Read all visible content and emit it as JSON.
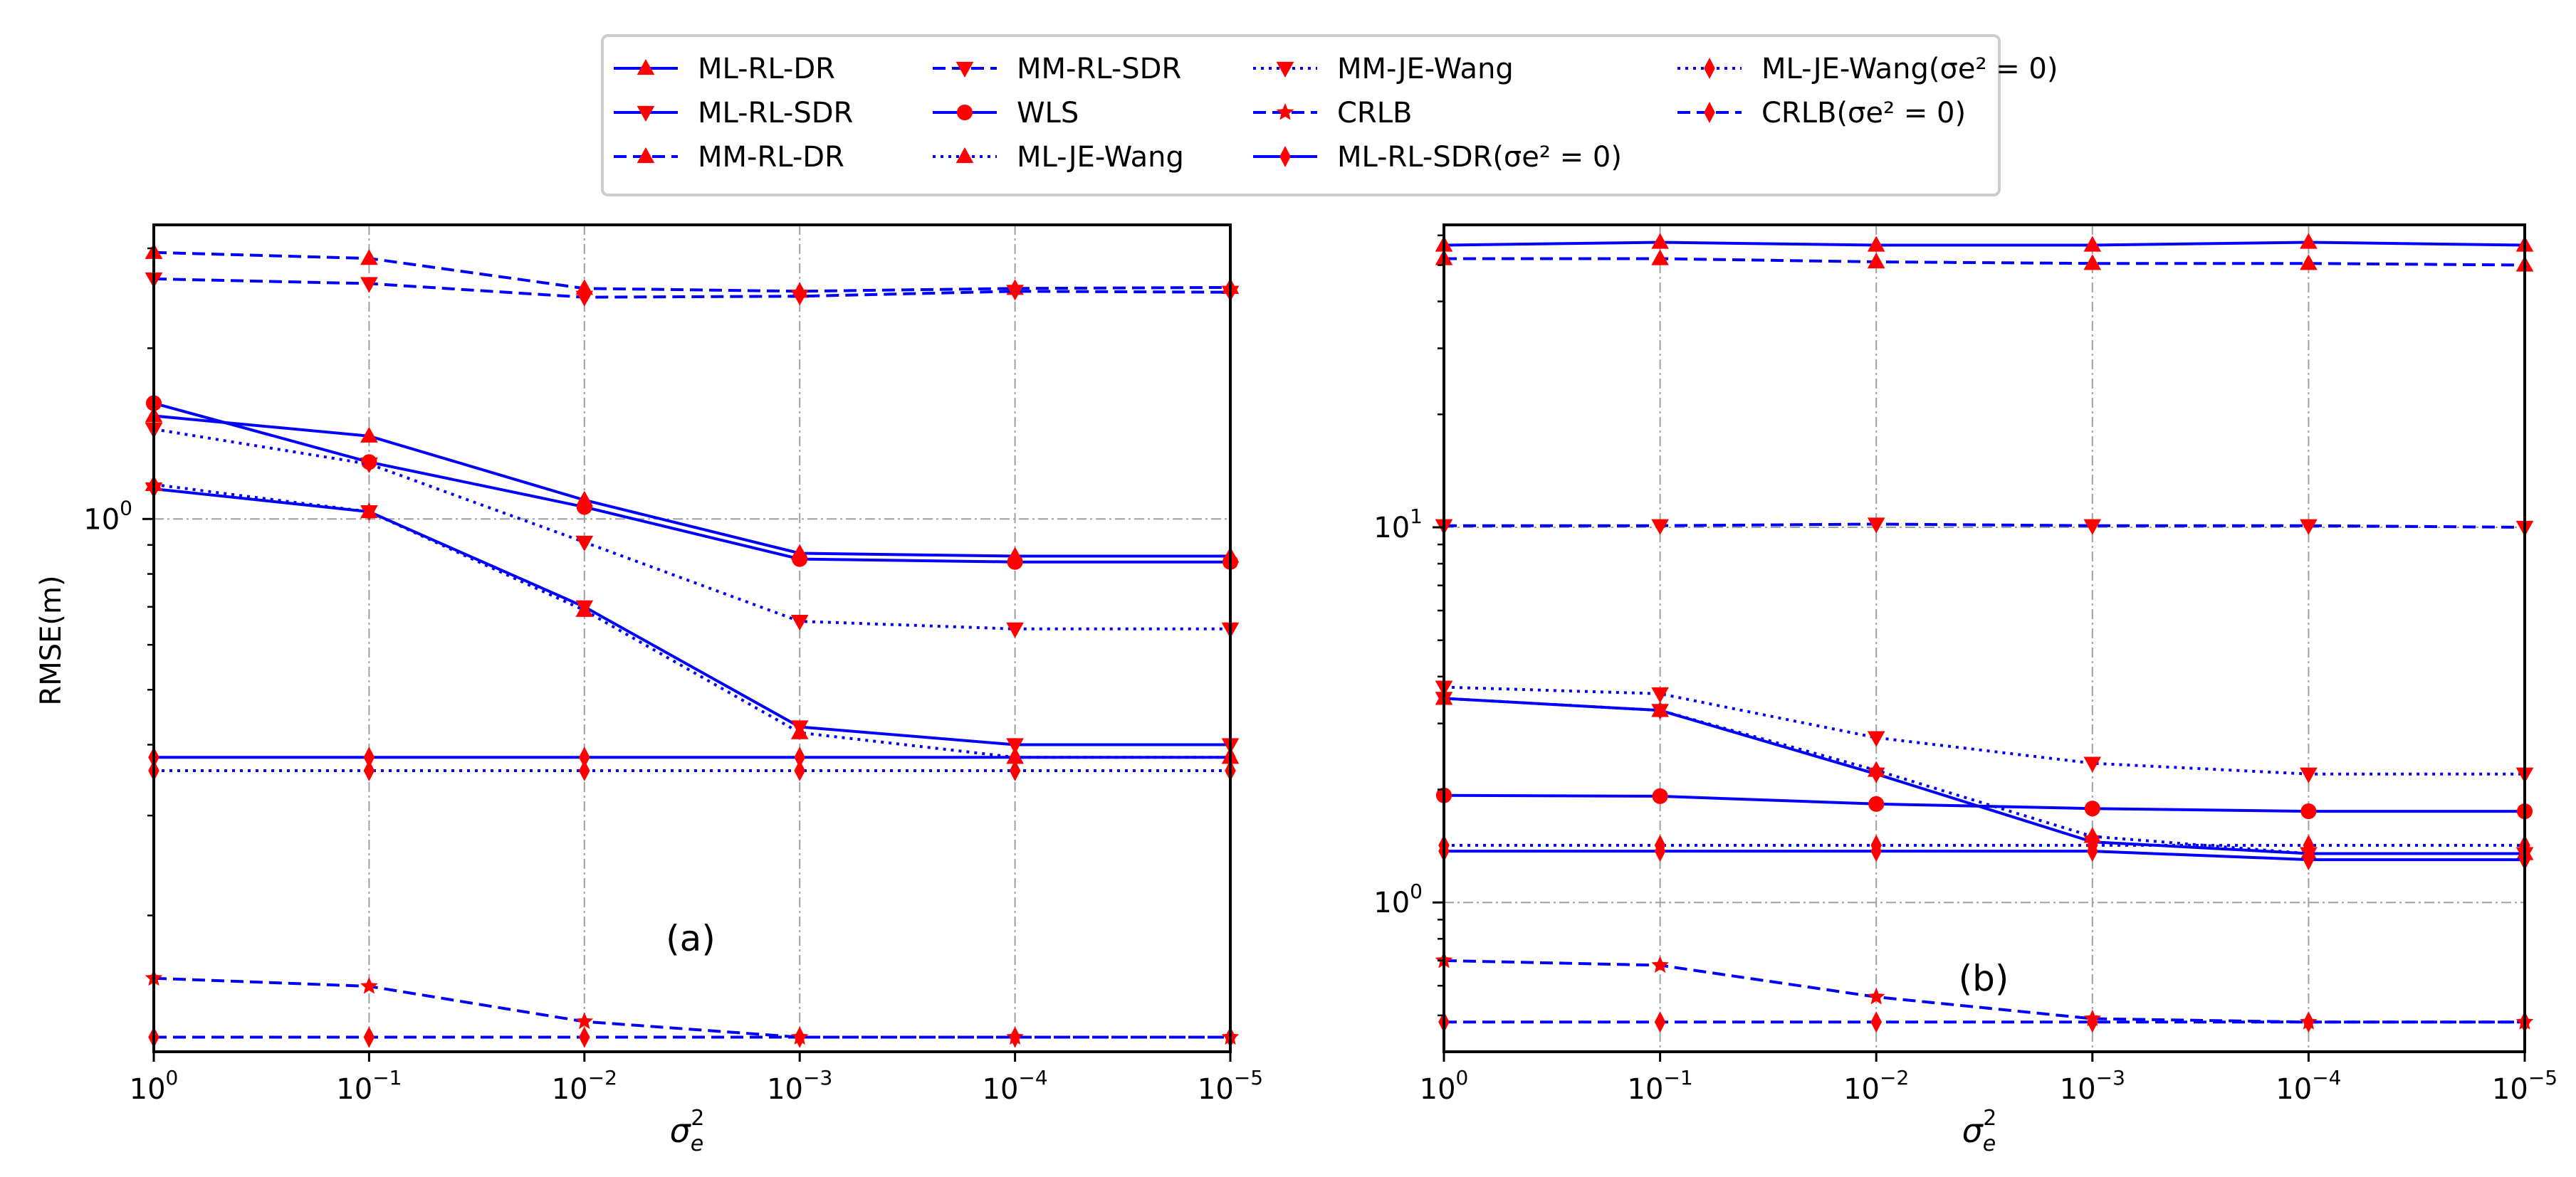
{
  "figure": {
    "y_axis_label": "RMSE(m)",
    "x_axis_label_base": "σ",
    "x_axis_label_sub": "e",
    "x_axis_label_sup": "2"
  },
  "legend": {
    "columns": 4,
    "placement": "top-center, above both panels",
    "entries": [
      {
        "label": "ML-RL-DR",
        "line_style": "solid",
        "marker": "triangle-up"
      },
      {
        "label": "ML-RL-SDR",
        "line_style": "solid",
        "marker": "triangle-down"
      },
      {
        "label": "MM-RL-DR",
        "line_style": "dashed",
        "marker": "triangle-up"
      },
      {
        "label": "MM-RL-SDR",
        "line_style": "dashed",
        "marker": "triangle-down"
      },
      {
        "label": "WLS",
        "line_style": "solid",
        "marker": "circle"
      },
      {
        "label": "ML-JE-Wang",
        "line_style": "dotted",
        "marker": "triangle-up"
      },
      {
        "label": "MM-JE-Wang",
        "line_style": "dotted",
        "marker": "triangle-down"
      },
      {
        "label": "CRLB",
        "line_style": "dashed",
        "marker": "star"
      },
      {
        "label": "ML-RL-SDR(σe² = 0)",
        "line_style": "solid",
        "marker": "diamond"
      },
      {
        "label": "ML-JE-Wang(σe² = 0)",
        "line_style": "dotted",
        "marker": "diamond"
      },
      {
        "label": "CRLB(σe² = 0)",
        "line_style": "dashed",
        "marker": "diamond"
      }
    ]
  },
  "colors": {
    "line": "#0000ff",
    "marker": "#ff0000",
    "grid": "#a0a0a0",
    "axes": "#000000",
    "legend_border": "#cccccc"
  },
  "chart_data": [
    {
      "type": "line",
      "panel_label": "(a)",
      "xscale": "log",
      "yscale": "log",
      "x_direction": "decreasing",
      "x": [
        1,
        0.1,
        0.01,
        0.001,
        0.0001,
        1e-05
      ],
      "x_tick_labels": [
        {
          "base": "10",
          "exp": "0"
        },
        {
          "base": "10",
          "exp": "−1"
        },
        {
          "base": "10",
          "exp": "−2"
        },
        {
          "base": "10",
          "exp": "−3"
        },
        {
          "base": "10",
          "exp": "−4"
        },
        {
          "base": "10",
          "exp": "−5"
        }
      ],
      "y_major_ticks": [
        {
          "value": 1,
          "base": "10",
          "exp": "0"
        }
      ],
      "ylim": [
        0.115,
        3.3
      ],
      "grid": true,
      "series": [
        {
          "name": "ML-RL-DR",
          "values": [
            1.52,
            1.4,
            1.08,
            0.87,
            0.86,
            0.86
          ]
        },
        {
          "name": "ML-RL-SDR",
          "values": [
            1.13,
            1.03,
            0.7,
            0.43,
            0.4,
            0.4
          ]
        },
        {
          "name": "MM-RL-DR",
          "values": [
            2.95,
            2.88,
            2.55,
            2.52,
            2.55,
            2.56
          ]
        },
        {
          "name": "MM-RL-SDR",
          "values": [
            2.65,
            2.6,
            2.46,
            2.47,
            2.52,
            2.51
          ]
        },
        {
          "name": "WLS",
          "values": [
            1.6,
            1.26,
            1.05,
            0.85,
            0.84,
            0.84
          ]
        },
        {
          "name": "ML-JE-Wang",
          "values": [
            1.15,
            1.03,
            0.69,
            0.42,
            0.38,
            0.38
          ]
        },
        {
          "name": "MM-JE-Wang",
          "values": [
            1.44,
            1.25,
            0.91,
            0.66,
            0.64,
            0.64
          ]
        },
        {
          "name": "CRLB",
          "values": [
            0.155,
            0.15,
            0.13,
            0.122,
            0.122,
            0.122
          ]
        },
        {
          "name": "ML-RL-SDR(σe² = 0)",
          "values": [
            0.38,
            0.38,
            0.38,
            0.38,
            0.38,
            0.38
          ]
        },
        {
          "name": "ML-JE-Wang(σe² = 0)",
          "values": [
            0.36,
            0.36,
            0.36,
            0.36,
            0.36,
            0.36
          ]
        },
        {
          "name": "CRLB(σe² = 0)",
          "values": [
            0.122,
            0.122,
            0.122,
            0.122,
            0.122,
            0.122
          ]
        }
      ]
    },
    {
      "type": "line",
      "panel_label": "(b)",
      "xscale": "log",
      "yscale": "log",
      "x_direction": "decreasing",
      "x": [
        1,
        0.1,
        0.01,
        0.001,
        0.0001,
        1e-05
      ],
      "x_tick_labels": [
        {
          "base": "10",
          "exp": "0"
        },
        {
          "base": "10",
          "exp": "−1"
        },
        {
          "base": "10",
          "exp": "−2"
        },
        {
          "base": "10",
          "exp": "−3"
        },
        {
          "base": "10",
          "exp": "−4"
        },
        {
          "base": "10",
          "exp": "−5"
        }
      ],
      "y_major_ticks": [
        {
          "value": 1,
          "base": "10",
          "exp": "0"
        },
        {
          "value": 10,
          "base": "10",
          "exp": "1"
        }
      ],
      "ylim": [
        0.4,
        64
      ],
      "grid": true,
      "series": [
        {
          "name": "ML-RL-DR",
          "values": [
            56.5,
            57.5,
            56.5,
            56.5,
            57.5,
            56.5
          ]
        },
        {
          "name": "ML-RL-SDR",
          "values": [
            3.5,
            3.25,
            2.2,
            1.45,
            1.35,
            1.35
          ]
        },
        {
          "name": "MM-RL-DR",
          "values": [
            52,
            52,
            51,
            50.5,
            50.5,
            50
          ]
        },
        {
          "name": "MM-RL-SDR",
          "values": [
            10.1,
            10.1,
            10.2,
            10.1,
            10.1,
            10.0
          ]
        },
        {
          "name": "WLS",
          "values": [
            1.93,
            1.92,
            1.83,
            1.78,
            1.75,
            1.75
          ]
        },
        {
          "name": "ML-JE-Wang",
          "values": [
            3.5,
            3.25,
            2.25,
            1.5,
            1.35,
            1.35
          ]
        },
        {
          "name": "MM-JE-Wang",
          "values": [
            3.75,
            3.6,
            2.75,
            2.35,
            2.2,
            2.2
          ]
        },
        {
          "name": "CRLB",
          "values": [
            0.7,
            0.68,
            0.56,
            0.49,
            0.48,
            0.48
          ]
        },
        {
          "name": "ML-RL-SDR(σe² = 0)",
          "values": [
            1.37,
            1.37,
            1.37,
            1.37,
            1.3,
            1.3
          ]
        },
        {
          "name": "ML-JE-Wang(σe² = 0)",
          "values": [
            1.42,
            1.42,
            1.42,
            1.42,
            1.42,
            1.42
          ]
        },
        {
          "name": "CRLB(σe² = 0)",
          "values": [
            0.48,
            0.48,
            0.48,
            0.48,
            0.48,
            0.48
          ]
        }
      ]
    }
  ]
}
